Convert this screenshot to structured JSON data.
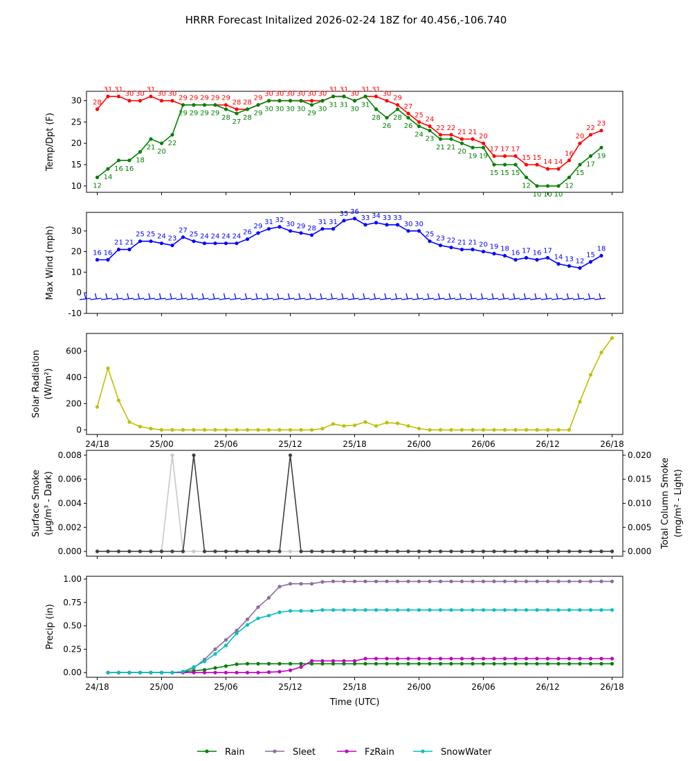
{
  "title": "HRRR Forecast Initalized 2026-02-24 18Z for 40.456,-106.740",
  "chart_data": [
    {
      "id": "temp",
      "type": "line",
      "ylabel": "Temp/Dpt (F)",
      "ylim": [
        8.5,
        32.2
      ],
      "yticks": [
        10,
        15,
        20,
        25,
        30
      ],
      "series": [
        {
          "name": "Temperature",
          "color": "#ff0000",
          "label_pos": "above",
          "values": [
            28,
            31,
            31,
            30,
            30,
            31,
            30,
            30,
            29,
            29,
            29,
            29,
            29,
            28,
            28,
            29,
            30,
            30,
            30,
            30,
            30,
            30,
            31,
            31,
            30,
            31,
            31,
            30,
            29,
            27,
            25,
            24,
            22,
            22,
            21,
            21,
            20,
            17,
            17,
            17,
            15,
            15,
            14,
            14,
            16,
            20,
            22,
            23
          ]
        },
        {
          "name": "Dewpoint",
          "color": "#008000",
          "label_pos": "below",
          "values": [
            12,
            14,
            16,
            16,
            18,
            21,
            20,
            22,
            29,
            29,
            29,
            29,
            28,
            27,
            28,
            29,
            30,
            30,
            30,
            30,
            29,
            30,
            31,
            31,
            30,
            31,
            28,
            26,
            28,
            26,
            24,
            23,
            21,
            21,
            20,
            19,
            19,
            15,
            15,
            15,
            12,
            10,
            10,
            10,
            12,
            15,
            17,
            19
          ]
        }
      ]
    },
    {
      "id": "wind",
      "type": "line",
      "ylabel": "Max Wind (mph)",
      "ylim": [
        -10,
        39
      ],
      "yticks": [
        -10,
        0,
        10,
        20,
        30
      ],
      "series": [
        {
          "name": "Max Wind",
          "color": "#0000ff",
          "label_pos": "above",
          "values": [
            16,
            16,
            21,
            21,
            25,
            25,
            24,
            23,
            27,
            25,
            24,
            24,
            24,
            24,
            26,
            29,
            31,
            32,
            30,
            29,
            28,
            31,
            31,
            35,
            36,
            33,
            34,
            33,
            33,
            30,
            30,
            25,
            23,
            22,
            21,
            21,
            20,
            19,
            18,
            16,
            17,
            16,
            17,
            14,
            13,
            12,
            15,
            18
          ]
        }
      ],
      "barbs_note": "wind barbs along y = -3"
    },
    {
      "id": "solar",
      "type": "line",
      "ylabel": "Solar Radiation",
      "ylabel2": "(W/m²)",
      "ylim": [
        -35,
        735
      ],
      "yticks": [
        0,
        200,
        400,
        600
      ],
      "series": [
        {
          "name": "Solar Radiation",
          "color": "#bfbf00",
          "values": [
            175,
            470,
            225,
            60,
            25,
            10,
            0,
            0,
            0,
            0,
            0,
            0,
            0,
            0,
            0,
            0,
            0,
            0,
            0,
            0,
            0,
            10,
            45,
            30,
            35,
            60,
            30,
            55,
            50,
            30,
            10,
            0,
            0,
            0,
            0,
            0,
            0,
            0,
            0,
            0,
            0,
            0,
            0,
            0,
            0,
            215,
            420,
            590,
            700
          ]
        }
      ]
    },
    {
      "id": "smoke",
      "type": "line",
      "ylabel": "Surface Smoke",
      "ylabel2": "(μg/m³ - Dark)",
      "ylabel_right": "Total Column Smoke",
      "ylabel_right2": "(mg/m² - Light)",
      "ylim": [
        -0.0004,
        0.0084
      ],
      "yticks": [
        "0.000",
        "0.002",
        "0.004",
        "0.006",
        "0.008"
      ],
      "ylim_right": [
        -0.001,
        0.021
      ],
      "yticks_right": [
        "0.000",
        "0.005",
        "0.010",
        "0.015",
        "0.020"
      ],
      "series": [
        {
          "name": "Total Column Smoke (Light)",
          "color": "#c8c8c8",
          "axis": "right",
          "values": [
            0,
            0,
            0,
            0,
            0,
            0,
            0,
            0.02,
            0,
            0,
            0,
            0,
            0,
            0,
            0,
            0,
            0,
            0,
            0,
            0,
            0,
            0,
            0,
            0,
            0,
            0,
            0,
            0,
            0,
            0,
            0,
            0,
            0,
            0,
            0,
            0,
            0,
            0,
            0,
            0,
            0,
            0,
            0,
            0,
            0,
            0,
            0,
            0,
            0
          ]
        },
        {
          "name": "Surface Smoke (Dark)",
          "color": "#404040",
          "axis": "left",
          "values": [
            0,
            0,
            0,
            0,
            0,
            0,
            0,
            0,
            0,
            0.008,
            0,
            0,
            0,
            0,
            0,
            0,
            0,
            0,
            0.008,
            0,
            0,
            0,
            0,
            0,
            0,
            0,
            0,
            0,
            0,
            0,
            0,
            0,
            0,
            0,
            0,
            0,
            0,
            0,
            0,
            0,
            0,
            0,
            0,
            0,
            0,
            0,
            0,
            0,
            0
          ]
        }
      ]
    },
    {
      "id": "precip",
      "type": "line",
      "ylabel": "Precip (in)",
      "xlabel": "Time (UTC)",
      "ylim": [
        -0.05,
        1.03
      ],
      "yticks": [
        "0.00",
        "0.25",
        "0.50",
        "0.75",
        "1.00"
      ],
      "series": [
        {
          "name": "Rain",
          "color": "#008000",
          "values": [
            0,
            0,
            0,
            0,
            0,
            0,
            0,
            0.01,
            0.02,
            0.03,
            0.05,
            0.07,
            0.09,
            0.095,
            0.095,
            0.095,
            0.095,
            0.095,
            0.095,
            0.095,
            0.095,
            0.095,
            0.095,
            0.095,
            0.095,
            0.095,
            0.095,
            0.095,
            0.095,
            0.095,
            0.095,
            0.095,
            0.095,
            0.095,
            0.095,
            0.095,
            0.095,
            0.095,
            0.095,
            0.095,
            0.095,
            0.095,
            0.095,
            0.095,
            0.095,
            0.095,
            0.095,
            0.095
          ]
        },
        {
          "name": "Sleet",
          "color": "#8c6d9c",
          "values": [
            0,
            0,
            0,
            0,
            0,
            0,
            0,
            0.01,
            0.05,
            0.14,
            0.25,
            0.35,
            0.45,
            0.57,
            0.7,
            0.8,
            0.92,
            0.95,
            0.95,
            0.95,
            0.97,
            0.975,
            0.975,
            0.975,
            0.975,
            0.975,
            0.975,
            0.975,
            0.975,
            0.975,
            0.975,
            0.975,
            0.975,
            0.975,
            0.975,
            0.975,
            0.975,
            0.975,
            0.975,
            0.975,
            0.975,
            0.975,
            0.975,
            0.975,
            0.975,
            0.975,
            0.975,
            0.975
          ]
        },
        {
          "name": "FzRain",
          "color": "#c000c0",
          "values": [
            0,
            0,
            0,
            0,
            0,
            0,
            0,
            0,
            0,
            0,
            0,
            0,
            0,
            0,
            0,
            0.005,
            0.01,
            0.025,
            0.06,
            0.125,
            0.125,
            0.125,
            0.125,
            0.125,
            0.15,
            0.15,
            0.15,
            0.15,
            0.15,
            0.15,
            0.15,
            0.15,
            0.15,
            0.15,
            0.15,
            0.15,
            0.15,
            0.15,
            0.15,
            0.15,
            0.15,
            0.15,
            0.15,
            0.15,
            0.15,
            0.15,
            0.15,
            0.15
          ]
        },
        {
          "name": "SnowWater",
          "color": "#00bfbf",
          "values": [
            0,
            0,
            0,
            0,
            0,
            0,
            0,
            0.01,
            0.06,
            0.12,
            0.2,
            0.29,
            0.42,
            0.51,
            0.58,
            0.61,
            0.645,
            0.66,
            0.66,
            0.66,
            0.67,
            0.67,
            0.67,
            0.67,
            0.67,
            0.67,
            0.67,
            0.67,
            0.67,
            0.67,
            0.67,
            0.67,
            0.67,
            0.67,
            0.67,
            0.67,
            0.67,
            0.67,
            0.67,
            0.67,
            0.67,
            0.67,
            0.67,
            0.67,
            0.67,
            0.67,
            0.67,
            0.67
          ]
        }
      ],
      "legend": [
        "Rain",
        "Sleet",
        "FzRain",
        "SnowWater"
      ],
      "legend_position": "bottom-center"
    }
  ],
  "x_axis": {
    "tick_labels": [
      "24/18",
      "25/00",
      "25/06",
      "25/12",
      "25/18",
      "26/00",
      "26/06",
      "26/12",
      "26/18"
    ],
    "tick_hours": [
      0,
      6,
      12,
      18,
      24,
      30,
      36,
      42,
      48
    ]
  }
}
